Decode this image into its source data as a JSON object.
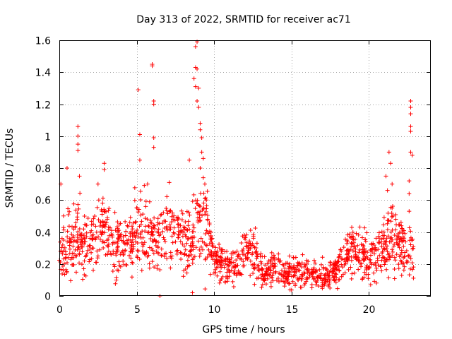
{
  "chart_data": {
    "type": "scatter",
    "title": "Day 313 of 2022, SRMTID for receiver ac71",
    "xlabel": "GPS time / hours",
    "ylabel": "SRMTID / TECUs",
    "xlim": [
      0,
      24
    ],
    "ylim": [
      0,
      1.6
    ],
    "xticks": [
      0,
      5,
      10,
      15,
      20
    ],
    "xtick_labels": [
      "0",
      "5",
      "10",
      "15",
      "20"
    ],
    "yticks": [
      0,
      0.2,
      0.4,
      0.6,
      0.8,
      1,
      1.2,
      1.4,
      1.6
    ],
    "ytick_labels": [
      "0",
      "0.2",
      "0.4",
      "0.6",
      "0.8",
      "1",
      "1.2",
      "1.4",
      "1.6"
    ],
    "grid": true,
    "marker": "+",
    "color": "#ff0000",
    "profile": {
      "hours": [
        0,
        0.5,
        1,
        1.5,
        2,
        2.5,
        3,
        3.5,
        4,
        4.5,
        5,
        5.5,
        6,
        6.5,
        7,
        7.5,
        8,
        8.5,
        9,
        9.5,
        10,
        10.5,
        11,
        11.5,
        12,
        12.5,
        13,
        13.5,
        14,
        14.5,
        15,
        15.5,
        16,
        16.5,
        17,
        17.5,
        18,
        18.5,
        19,
        19.5,
        20,
        20.5,
        21,
        21.5,
        22,
        22.5,
        22.9
      ],
      "typical": [
        0.32,
        0.3,
        0.36,
        0.34,
        0.36,
        0.38,
        0.42,
        0.34,
        0.3,
        0.36,
        0.4,
        0.42,
        0.38,
        0.36,
        0.38,
        0.4,
        0.34,
        0.32,
        0.48,
        0.42,
        0.24,
        0.2,
        0.18,
        0.2,
        0.3,
        0.28,
        0.17,
        0.16,
        0.16,
        0.15,
        0.14,
        0.14,
        0.15,
        0.13,
        0.12,
        0.13,
        0.16,
        0.26,
        0.3,
        0.26,
        0.22,
        0.26,
        0.32,
        0.38,
        0.32,
        0.24,
        0.26
      ],
      "spread": [
        0.12,
        0.12,
        0.14,
        0.12,
        0.12,
        0.14,
        0.14,
        0.12,
        0.1,
        0.12,
        0.14,
        0.14,
        0.14,
        0.12,
        0.12,
        0.12,
        0.12,
        0.12,
        0.18,
        0.16,
        0.08,
        0.07,
        0.06,
        0.08,
        0.1,
        0.1,
        0.06,
        0.06,
        0.06,
        0.06,
        0.06,
        0.06,
        0.06,
        0.05,
        0.05,
        0.05,
        0.06,
        0.08,
        0.1,
        0.1,
        0.08,
        0.1,
        0.12,
        0.14,
        0.12,
        0.1,
        0.1
      ]
    },
    "notable_points": [
      {
        "x": 0.1,
        "y": 0.7
      },
      {
        "x": 0.5,
        "y": 0.8
      },
      {
        "x": 1.2,
        "y": 1.06
      },
      {
        "x": 1.2,
        "y": 1.0
      },
      {
        "x": 1.2,
        "y": 0.95
      },
      {
        "x": 1.2,
        "y": 0.91
      },
      {
        "x": 1.3,
        "y": 0.75
      },
      {
        "x": 2.5,
        "y": 0.7
      },
      {
        "x": 2.9,
        "y": 0.83
      },
      {
        "x": 2.9,
        "y": 0.79
      },
      {
        "x": 5.1,
        "y": 1.29
      },
      {
        "x": 5.2,
        "y": 1.01
      },
      {
        "x": 5.2,
        "y": 0.85
      },
      {
        "x": 6.0,
        "y": 1.45
      },
      {
        "x": 6.0,
        "y": 1.44
      },
      {
        "x": 6.1,
        "y": 1.22
      },
      {
        "x": 6.1,
        "y": 1.2
      },
      {
        "x": 6.1,
        "y": 0.99
      },
      {
        "x": 6.1,
        "y": 0.93
      },
      {
        "x": 5.7,
        "y": 0.7
      },
      {
        "x": 7.1,
        "y": 0.71
      },
      {
        "x": 8.4,
        "y": 0.85
      },
      {
        "x": 8.6,
        "y": 0.02
      },
      {
        "x": 6.5,
        "y": 0.0
      },
      {
        "x": 8.8,
        "y": 1.56
      },
      {
        "x": 8.9,
        "y": 1.59
      },
      {
        "x": 8.8,
        "y": 1.43
      },
      {
        "x": 8.9,
        "y": 1.42
      },
      {
        "x": 8.7,
        "y": 1.36
      },
      {
        "x": 8.8,
        "y": 1.31
      },
      {
        "x": 9.0,
        "y": 1.3
      },
      {
        "x": 8.9,
        "y": 1.22
      },
      {
        "x": 9.0,
        "y": 1.18
      },
      {
        "x": 9.1,
        "y": 1.08
      },
      {
        "x": 9.1,
        "y": 1.04
      },
      {
        "x": 9.2,
        "y": 0.99
      },
      {
        "x": 9.2,
        "y": 0.9
      },
      {
        "x": 9.3,
        "y": 0.86
      },
      {
        "x": 9.1,
        "y": 0.8
      },
      {
        "x": 9.3,
        "y": 0.74
      },
      {
        "x": 9.4,
        "y": 0.7
      },
      {
        "x": 9.5,
        "y": 0.6
      },
      {
        "x": 21.1,
        "y": 0.75
      },
      {
        "x": 21.3,
        "y": 0.9
      },
      {
        "x": 21.4,
        "y": 0.83
      },
      {
        "x": 21.5,
        "y": 0.7
      },
      {
        "x": 21.2,
        "y": 0.66
      },
      {
        "x": 21.5,
        "y": 0.55
      },
      {
        "x": 22.7,
        "y": 1.22
      },
      {
        "x": 22.7,
        "y": 1.18
      },
      {
        "x": 22.7,
        "y": 1.14
      },
      {
        "x": 22.7,
        "y": 1.06
      },
      {
        "x": 22.7,
        "y": 1.03
      },
      {
        "x": 22.7,
        "y": 0.9
      },
      {
        "x": 22.8,
        "y": 0.88
      },
      {
        "x": 22.6,
        "y": 0.72
      },
      {
        "x": 22.6,
        "y": 0.64
      },
      {
        "x": 22.6,
        "y": 0.53
      }
    ]
  }
}
